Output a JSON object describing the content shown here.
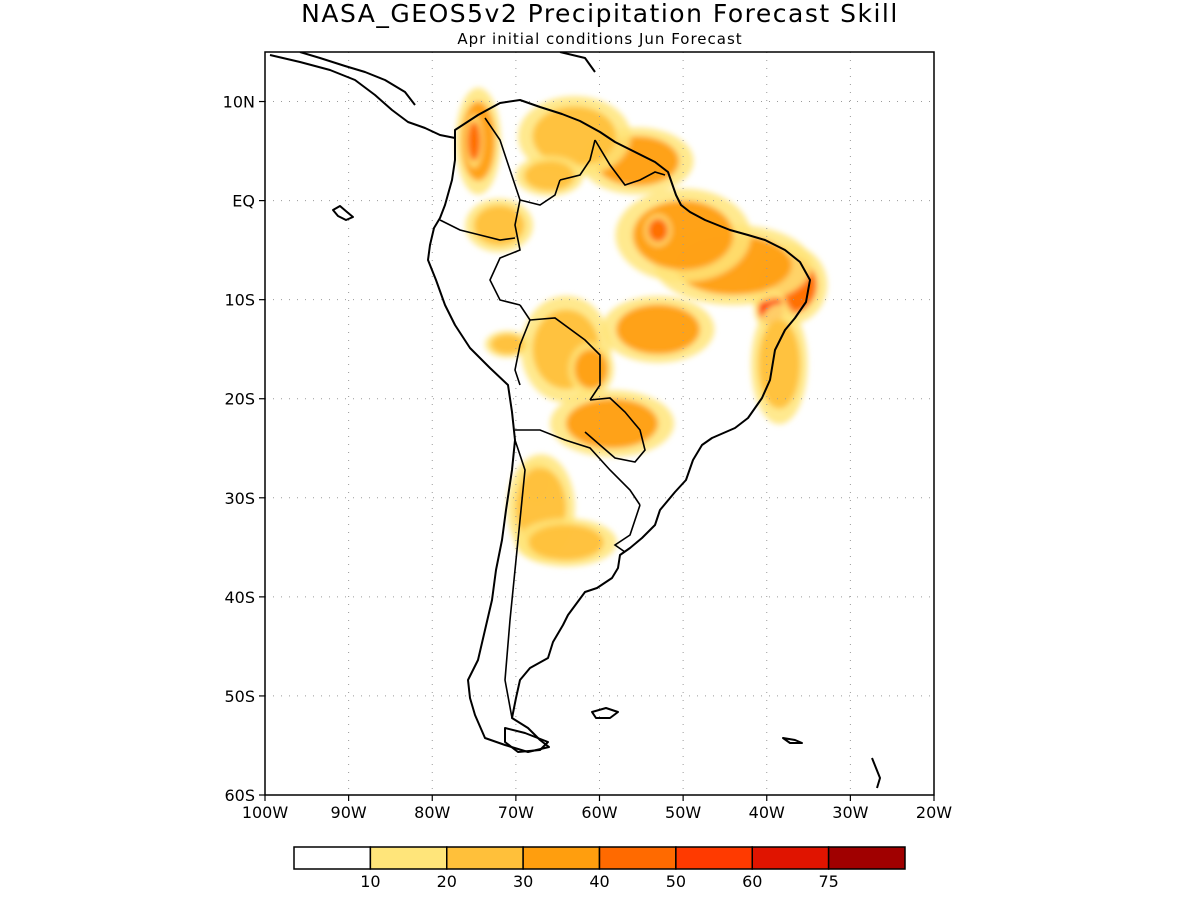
{
  "title": "NASA_GEOS5v2 Precipitation Forecast Skill",
  "subtitle": "Apr initial conditions  Jun Forecast",
  "chart_data": {
    "type": "heatmap",
    "xlim": [
      -100,
      -20
    ],
    "ylim": [
      -60,
      15
    ],
    "x_ticks": [
      {
        "value": -100,
        "label": "100W"
      },
      {
        "value": -90,
        "label": "90W"
      },
      {
        "value": -80,
        "label": "80W"
      },
      {
        "value": -70,
        "label": "70W"
      },
      {
        "value": -60,
        "label": "60W"
      },
      {
        "value": -50,
        "label": "50W"
      },
      {
        "value": -40,
        "label": "40W"
      },
      {
        "value": -30,
        "label": "30W"
      },
      {
        "value": -20,
        "label": "20W"
      }
    ],
    "y_ticks": [
      {
        "value": 10,
        "label": "10N"
      },
      {
        "value": 0,
        "label": "EQ"
      },
      {
        "value": -10,
        "label": "10S"
      },
      {
        "value": -20,
        "label": "20S"
      },
      {
        "value": -30,
        "label": "30S"
      },
      {
        "value": -40,
        "label": "40S"
      },
      {
        "value": -50,
        "label": "50S"
      },
      {
        "value": -60,
        "label": "60S"
      }
    ],
    "grid": true,
    "legend": "bottom colorbar",
    "levels": [
      "10",
      "20",
      "30",
      "40",
      "50",
      "60",
      "75"
    ],
    "colors": [
      "#ffffff",
      "#ffe57a",
      "#ffc03a",
      "#ff9e0e",
      "#ff6a00",
      "#ff3a00",
      "#e01400",
      "#a00000"
    ],
    "skill_regions": [
      {
        "lon": -37.5,
        "lat": -8.5,
        "rx": 3.5,
        "ry": 3.0,
        "value": 45
      },
      {
        "lon": -39.5,
        "lat": -11.0,
        "rx": 1.5,
        "ry": 1.5,
        "value": 55
      },
      {
        "lon": -44.0,
        "lat": -6.5,
        "rx": 7.0,
        "ry": 3.0,
        "value": 32
      },
      {
        "lon": -50.0,
        "lat": -3.5,
        "rx": 6.0,
        "ry": 3.5,
        "value": 32
      },
      {
        "lon": -53.0,
        "lat": -3.0,
        "rx": 1.2,
        "ry": 1.2,
        "value": 48
      },
      {
        "lon": -55.5,
        "lat": 4.0,
        "rx": 5.0,
        "ry": 2.5,
        "value": 30
      },
      {
        "lon": -63.0,
        "lat": 6.5,
        "rx": 5.0,
        "ry": 3.0,
        "value": 25
      },
      {
        "lon": -66.0,
        "lat": 2.5,
        "rx": 3.0,
        "ry": 1.5,
        "value": 25
      },
      {
        "lon": -74.5,
        "lat": 6.0,
        "rx": 2.0,
        "ry": 4.0,
        "value": 30
      },
      {
        "lon": -75.0,
        "lat": 6.0,
        "rx": 0.8,
        "ry": 2.0,
        "value": 42
      },
      {
        "lon": -72.0,
        "lat": -2.5,
        "rx": 3.0,
        "ry": 2.0,
        "value": 22
      },
      {
        "lon": -53.0,
        "lat": -13.0,
        "rx": 5.0,
        "ry": 2.5,
        "value": 30
      },
      {
        "lon": -64.0,
        "lat": -15.0,
        "rx": 4.0,
        "ry": 4.0,
        "value": 25
      },
      {
        "lon": -61.0,
        "lat": -17.0,
        "rx": 2.0,
        "ry": 2.0,
        "value": 38
      },
      {
        "lon": -58.5,
        "lat": -22.5,
        "rx": 5.5,
        "ry": 2.5,
        "value": 33
      },
      {
        "lon": -67.5,
        "lat": -28.5,
        "rx": 1.6,
        "ry": 1.6,
        "value": 45
      },
      {
        "lon": -67.0,
        "lat": -31.0,
        "rx": 3.0,
        "ry": 4.0,
        "value": 22
      },
      {
        "lon": -64.0,
        "lat": -34.5,
        "rx": 4.5,
        "ry": 1.8,
        "value": 20
      },
      {
        "lon": -38.5,
        "lat": -16.5,
        "rx": 2.5,
        "ry": 4.5,
        "value": 22
      },
      {
        "lon": -71.0,
        "lat": -14.5,
        "rx": 2.0,
        "ry": 1.0,
        "value": 22
      }
    ]
  }
}
